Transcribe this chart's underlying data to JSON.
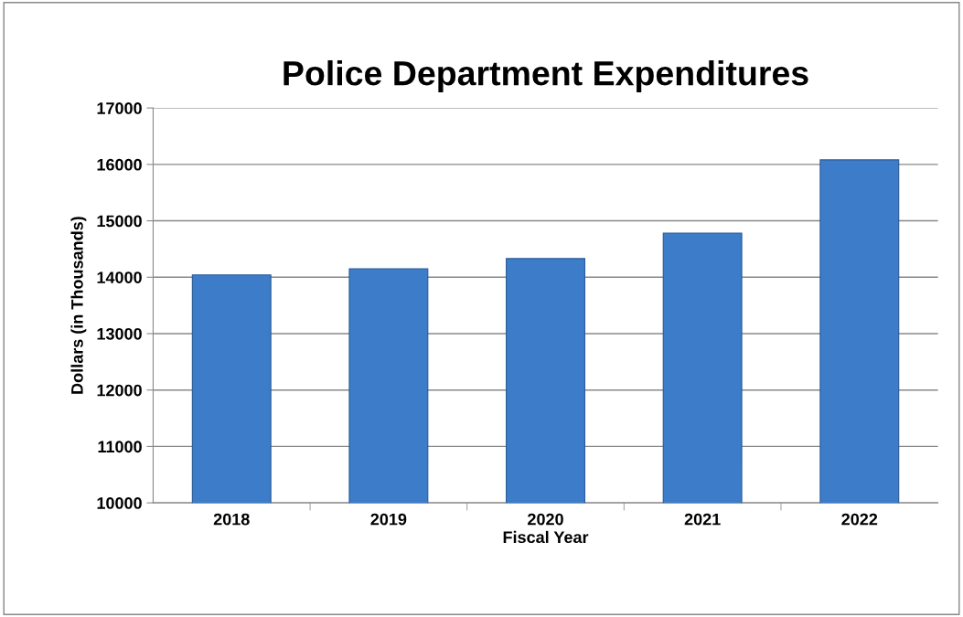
{
  "chart_data": {
    "type": "bar",
    "title": "Police Department Expenditures",
    "xlabel": "Fiscal Year",
    "ylabel": "Dollars (in Thousands)",
    "categories": [
      "2018",
      "2019",
      "2020",
      "2021",
      "2022"
    ],
    "values": [
      14040,
      14150,
      14330,
      14780,
      16080
    ],
    "color": "#3d7cc9",
    "ylim": [
      10000,
      17000
    ],
    "yticks": [
      10000,
      11000,
      12000,
      13000,
      14000,
      15000,
      16000,
      17000
    ],
    "grid": "y",
    "legend": false
  }
}
